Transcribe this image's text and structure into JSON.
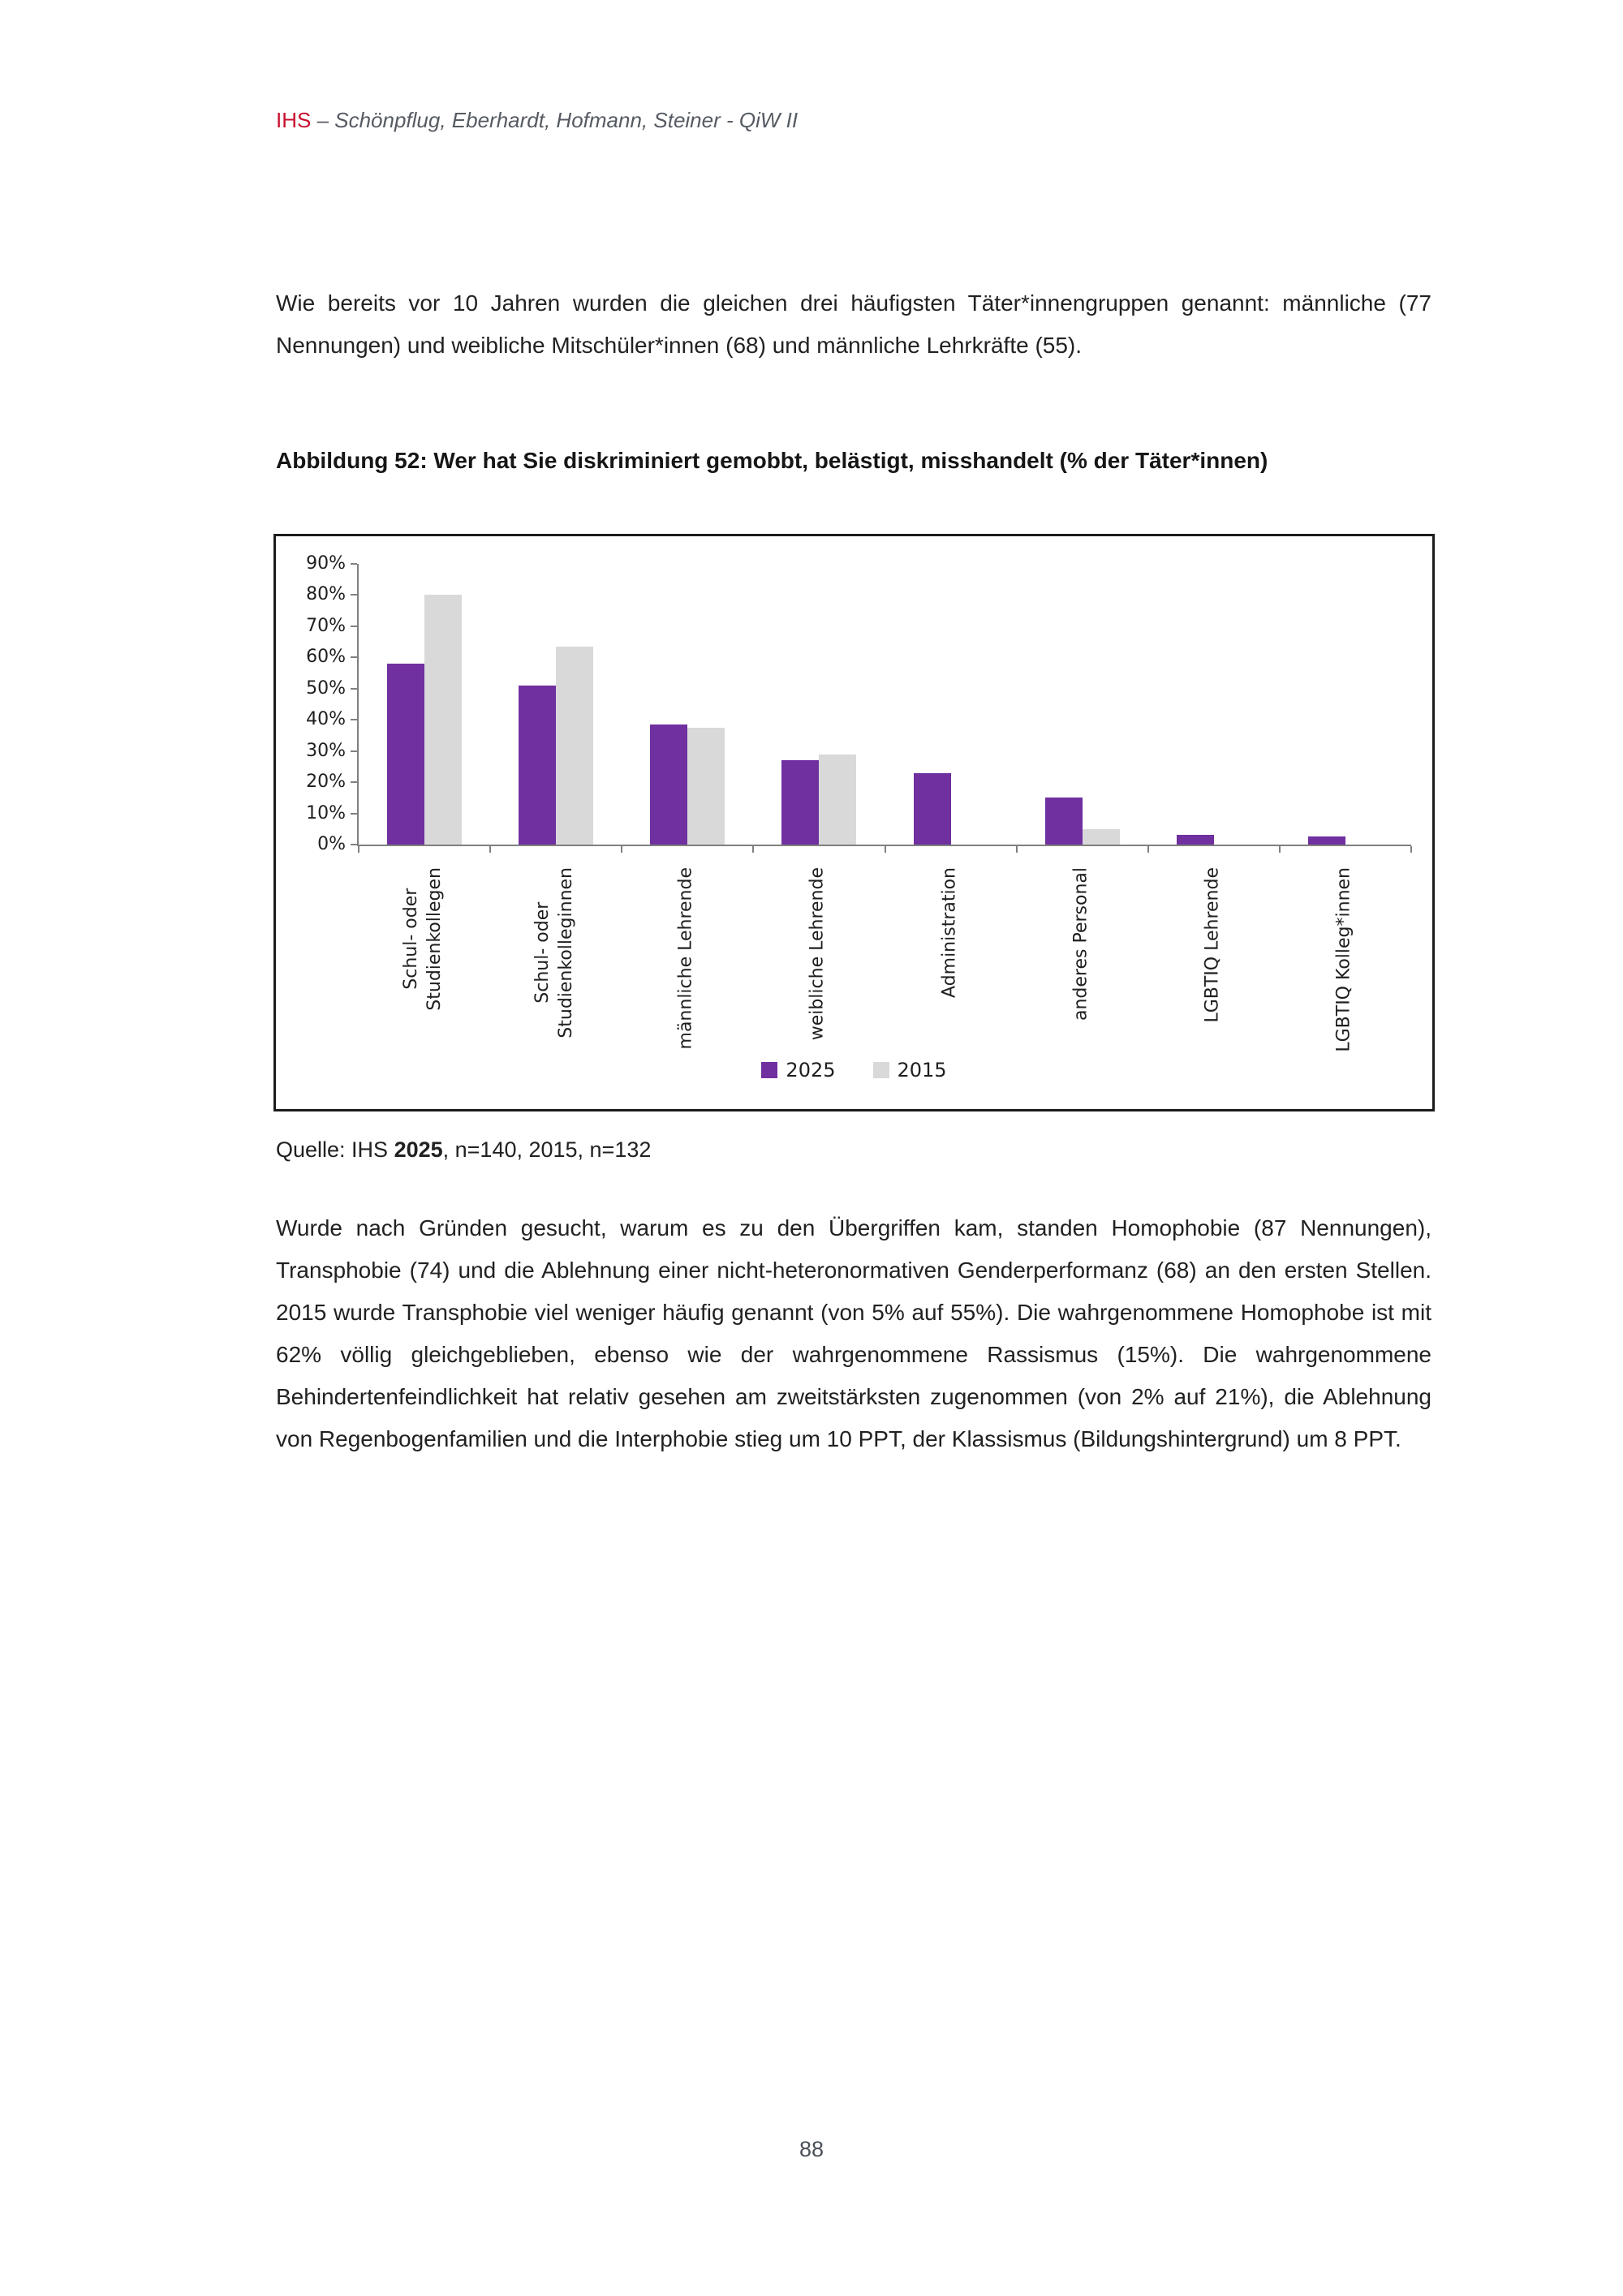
{
  "header": {
    "brand": "IHS",
    "rest": " – Schönpflug, Eberhardt, Hofmann, Steiner - QiW II"
  },
  "intro_paragraph": "Wie bereits vor 10 Jahren wurden die gleichen drei häufigsten Täter*innengruppen genannt: männliche (77 Nennungen) und weibliche Mitschüler*innen (68) und männliche Lehrkräfte (55).",
  "figure": {
    "caption": "Abbildung 52: Wer hat Sie diskriminiert gemobbt, belästigt, misshandelt (% der Täter*innen)",
    "source_prefix": "Quelle: IHS ",
    "source_bold": "2025",
    "source_suffix": ", n=140, 2015, n=132"
  },
  "chart_data": {
    "type": "bar",
    "categories": [
      "Schul- oder\nStudienkollegen",
      "Schul- oder\nStudienkolleginnen",
      "männliche Lehrende",
      "weibliche Lehrende",
      "Administration",
      "anderes Personal",
      "LGBTIQ Lehrende",
      "LGBTIQ Kolleg*innen"
    ],
    "series": [
      {
        "name": "2025",
        "color": "#7030A0",
        "values": [
          58,
          51,
          38.5,
          27,
          23,
          15,
          3,
          2.5
        ]
      },
      {
        "name": "2015",
        "color": "#D9D9D9",
        "values": [
          80,
          63.5,
          37.5,
          29,
          0,
          5,
          0,
          0
        ]
      }
    ],
    "title": "",
    "xlabel": "",
    "ylabel": "",
    "ylim": [
      0,
      90
    ],
    "ytick_step": 10,
    "ytick_format": "percent",
    "grid": false,
    "legend_position": "bottom"
  },
  "body_paragraph": "Wurde nach Gründen gesucht, warum es zu den Übergriffen kam, standen Homophobie (87 Nennungen), Transphobie (74) und die Ablehnung einer nicht-heteronormativen Genderperformanz (68) an den ersten Stellen. 2015 wurde Transphobie viel weniger häufig genannt (von 5% auf 55%). Die wahrgenommene Homophobe ist mit 62% völlig gleichgeblieben, ebenso wie der wahrgenommene Rassismus (15%). Die wahrgenommene Behindertenfeindlichkeit hat relativ gesehen am zweitstärksten zugenommen (von 2% auf 21%), die Ablehnung von Regenbogenfamilien und die Interphobie stieg um 10 PPT, der Klassismus (Bildungshintergrund) um 8 PPT.",
  "page_number": "88",
  "colors": {
    "brand_red": "#C8102E",
    "series_2025": "#7030A0",
    "series_2015": "#D9D9D9",
    "axis_gray": "#808080"
  }
}
